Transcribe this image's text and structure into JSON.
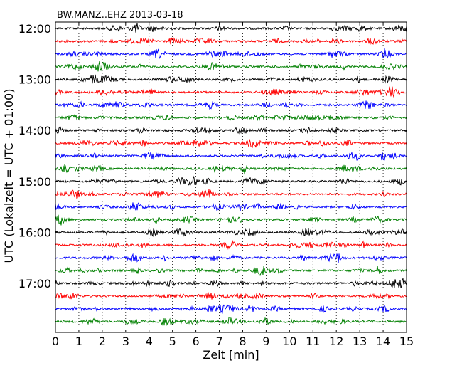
{
  "chart_data": {
    "type": "line",
    "title": "BW.MANZ..EHZ 2013-03-18",
    "xlabel": "Zeit  [min]",
    "ylabel": "UTC (Lokalzeit = UTC + 01:00)",
    "xlim": [
      0,
      15
    ],
    "x_ticks": [
      "0",
      "1",
      "2",
      "3",
      "4",
      "5",
      "6",
      "7",
      "8",
      "9",
      "10",
      "11",
      "12",
      "13",
      "14",
      "15"
    ],
    "y_tick_labels": [
      "12:00",
      "13:00",
      "14:00",
      "15:00",
      "16:00",
      "17:00"
    ],
    "grid": "vertical dotted lines at each minute",
    "trace_start_times": [
      "12:00",
      "12:15",
      "12:30",
      "12:45",
      "13:00",
      "13:15",
      "13:30",
      "13:45",
      "14:00",
      "14:15",
      "14:30",
      "14:45",
      "15:00",
      "15:15",
      "15:30",
      "15:45",
      "16:00",
      "16:15",
      "16:30",
      "16:45",
      "17:00",
      "17:15",
      "17:30",
      "17:45"
    ],
    "trace_colors": [
      "#000000",
      "#ff0000",
      "#0000ff",
      "#008000"
    ],
    "series_description": "seismogram traces, one per 15-minute interval, background noise only"
  }
}
